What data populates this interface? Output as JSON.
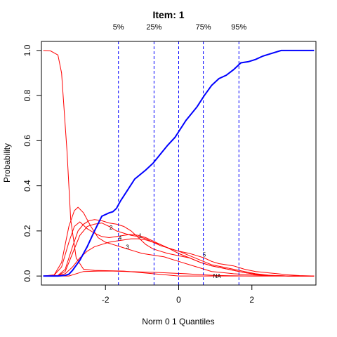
{
  "chart_data": {
    "type": "line",
    "title": "Item:  1",
    "xlabel": "Norm 0 1 Quantiles",
    "ylabel": "Probability",
    "xlim": [
      -3.75,
      3.75
    ],
    "ylim": [
      -0.04,
      1.04
    ],
    "xticks": [
      -2,
      0,
      2
    ],
    "xtick_labels": [
      "-2",
      "0",
      "2"
    ],
    "yticks": [
      0.0,
      0.2,
      0.4,
      0.6,
      0.8,
      1.0
    ],
    "ytick_labels": [
      "0.0",
      "0.2",
      "0.4",
      "0.6",
      "0.8",
      "1.0"
    ],
    "grid": false,
    "quantile_lines": [
      {
        "label": "5%",
        "x": -1.645
      },
      {
        "label": "25%",
        "x": -0.674
      },
      {
        "label": "75%",
        "x": 0.674
      },
      {
        "label": "95%",
        "x": 1.645
      }
    ],
    "median_line_x": 0,
    "colors": {
      "expected_score": "#0000ff",
      "options": "#ff0000",
      "quantile_lines": "#0000ff",
      "axes": "#000000"
    },
    "expected_score": {
      "x": [
        -3.7,
        -3.3,
        -3.1,
        -3.0,
        -2.9,
        -2.7,
        -2.5,
        -2.3,
        -2.1,
        -1.9,
        -1.8,
        -1.7,
        -1.6,
        -1.4,
        -1.2,
        -0.9,
        -0.7,
        -0.5,
        -0.3,
        -0.1,
        0.2,
        0.5,
        0.7,
        0.9,
        1.1,
        1.3,
        1.5,
        1.7,
        1.9,
        2.1,
        2.3,
        2.5,
        2.8,
        3.0,
        3.3,
        3.7
      ],
      "values": [
        0.0,
        0.0,
        0.003,
        0.008,
        0.025,
        0.07,
        0.13,
        0.2,
        0.265,
        0.28,
        0.285,
        0.3,
        0.33,
        0.38,
        0.43,
        0.47,
        0.5,
        0.54,
        0.58,
        0.615,
        0.69,
        0.75,
        0.8,
        0.845,
        0.875,
        0.89,
        0.915,
        0.945,
        0.95,
        0.96,
        0.975,
        0.985,
        1.0,
        1.0,
        1.0,
        1.0
      ]
    },
    "option_curves": [
      {
        "x": [
          -3.7,
          -3.5,
          -3.3,
          -3.2,
          -3.05,
          -2.95,
          -2.8,
          -2.6,
          -2.3,
          -1.5,
          0.0,
          3.7
        ],
        "values": [
          1.0,
          0.998,
          0.98,
          0.9,
          0.55,
          0.25,
          0.08,
          0.03,
          0.025,
          0.022,
          0.0,
          0.0
        ]
      },
      {
        "label": "1",
        "label_x": -1.05,
        "label_y": 0.18,
        "x": [
          -3.7,
          -3.3,
          -3.1,
          -2.9,
          -2.7,
          -2.5,
          -2.3,
          -2.1,
          -1.9,
          -1.7,
          -1.5,
          -1.3,
          -1.1,
          -0.9,
          -0.7,
          -0.5,
          -0.3,
          0.0,
          0.3,
          0.6,
          0.9,
          1.2,
          1.5,
          1.8,
          2.1,
          2.5,
          3.0,
          3.7
        ],
        "values": [
          0.0,
          0.002,
          0.02,
          0.1,
          0.18,
          0.22,
          0.23,
          0.235,
          0.22,
          0.2,
          0.19,
          0.18,
          0.175,
          0.165,
          0.15,
          0.135,
          0.125,
          0.11,
          0.09,
          0.07,
          0.05,
          0.04,
          0.03,
          0.02,
          0.01,
          0.003,
          0.0,
          0.0
        ]
      },
      {
        "label": "2",
        "label_x": -1.85,
        "label_y": 0.215,
        "x": [
          -3.7,
          -3.3,
          -3.1,
          -2.9,
          -2.75,
          -2.6,
          -2.45,
          -2.3,
          -2.1,
          -1.9,
          -1.7,
          -1.5,
          -1.3,
          -1.1,
          -0.9,
          -0.7,
          -0.5,
          -0.3,
          0.0,
          0.3,
          0.6,
          0.9,
          1.2,
          1.5,
          1.8,
          2.2,
          2.6,
          3.0,
          3.7
        ],
        "values": [
          0.0,
          0.003,
          0.03,
          0.13,
          0.2,
          0.23,
          0.245,
          0.25,
          0.245,
          0.235,
          0.23,
          0.22,
          0.2,
          0.17,
          0.14,
          0.12,
          0.11,
          0.1,
          0.09,
          0.08,
          0.06,
          0.045,
          0.035,
          0.025,
          0.015,
          0.005,
          0.002,
          0.0,
          0.0
        ]
      },
      {
        "label": "3",
        "label_x": -1.4,
        "label_y": 0.13,
        "x": [
          -3.7,
          -3.4,
          -3.2,
          -3.0,
          -2.85,
          -2.75,
          -2.6,
          -2.4,
          -2.2,
          -2.0,
          -1.8,
          -1.6,
          -1.4,
          -1.2,
          -1.0,
          -0.8,
          -0.6,
          -0.4,
          -0.2,
          0.0,
          0.3,
          0.6,
          0.9,
          1.2,
          1.5,
          2.0,
          2.5,
          3.0,
          3.7
        ],
        "values": [
          0.0,
          0.005,
          0.06,
          0.22,
          0.29,
          0.305,
          0.28,
          0.22,
          0.17,
          0.15,
          0.14,
          0.13,
          0.12,
          0.11,
          0.1,
          0.095,
          0.09,
          0.085,
          0.075,
          0.065,
          0.05,
          0.035,
          0.02,
          0.015,
          0.01,
          0.005,
          0.002,
          0.0,
          0.0
        ]
      },
      {
        "label": "4",
        "label_x": -1.6,
        "label_y": 0.17,
        "x": [
          -3.7,
          -3.4,
          -3.2,
          -3.0,
          -2.85,
          -2.7,
          -2.5,
          -2.3,
          -2.1,
          -1.9,
          -1.7,
          -1.5,
          -1.3,
          -1.1,
          -0.9,
          -0.7,
          -0.5,
          -0.3,
          0.0,
          0.3,
          0.6,
          0.9,
          1.2,
          1.5,
          1.8,
          2.1,
          2.5,
          3.0,
          3.7
        ],
        "values": [
          0.0,
          0.004,
          0.04,
          0.15,
          0.22,
          0.24,
          0.21,
          0.19,
          0.175,
          0.17,
          0.175,
          0.18,
          0.185,
          0.18,
          0.17,
          0.155,
          0.14,
          0.125,
          0.1,
          0.08,
          0.06,
          0.045,
          0.035,
          0.025,
          0.015,
          0.008,
          0.003,
          0.0,
          0.0
        ]
      },
      {
        "label": "5",
        "label_x": 0.7,
        "label_y": 0.095,
        "x": [
          -3.7,
          -3.3,
          -3.1,
          -2.9,
          -2.7,
          -2.5,
          -2.3,
          -2.1,
          -1.9,
          -1.7,
          -1.5,
          -1.3,
          -1.1,
          -0.9,
          -0.7,
          -0.5,
          -0.3,
          0.0,
          0.3,
          0.5,
          0.7,
          0.9,
          1.1,
          1.3,
          1.5,
          1.8,
          2.1,
          2.4,
          2.7,
          3.0,
          3.3,
          3.7
        ],
        "values": [
          0.0,
          0.002,
          0.01,
          0.04,
          0.08,
          0.11,
          0.13,
          0.14,
          0.15,
          0.155,
          0.16,
          0.165,
          0.165,
          0.16,
          0.15,
          0.14,
          0.125,
          0.11,
          0.1,
          0.09,
          0.08,
          0.065,
          0.055,
          0.05,
          0.045,
          0.03,
          0.02,
          0.015,
          0.01,
          0.005,
          0.002,
          0.0
        ]
      },
      {
        "label": "NA",
        "label_x": 1.05,
        "label_y": 0.0,
        "x": [
          -3.7,
          -3.0,
          -2.6,
          -2.2,
          -1.8,
          -1.4,
          -1.0,
          -0.6,
          -0.2,
          0.2,
          0.6,
          1.0,
          1.4,
          2.0,
          3.7
        ],
        "values": [
          0.0,
          0.0,
          0.02,
          0.022,
          0.022,
          0.02,
          0.018,
          0.016,
          0.013,
          0.01,
          0.006,
          0.003,
          0.001,
          0.0,
          0.0
        ]
      }
    ]
  }
}
